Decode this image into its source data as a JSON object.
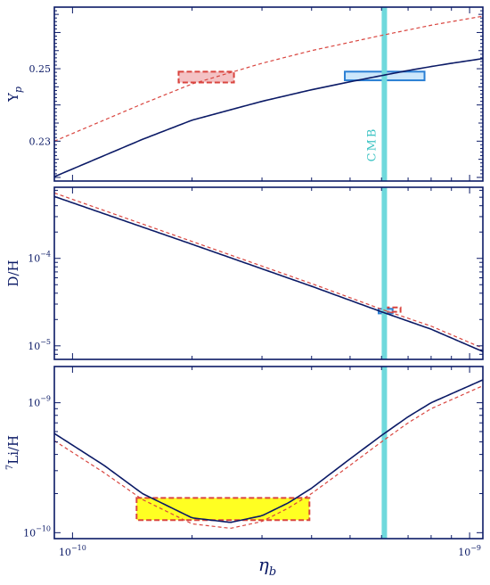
{
  "colors": {
    "axis": "#0b1a66",
    "solid_curve": "#0b1a66",
    "dashed_curve": "#d9453f",
    "cmb_band": "#6fd9dc",
    "cmb_text": "#3fc4c4",
    "box_blue_fill": "#cce7fb",
    "box_blue_stroke": "#2a7fd4",
    "box_red_fill": "#f4c2c4",
    "box_red_stroke": "#d9453f",
    "box_yellow_fill": "#ffff22",
    "box_yellow_stroke": "#d9453f"
  },
  "figure": {
    "xlabel": "η",
    "xlabel_sub": "b",
    "cmb_label": "CMB",
    "cmb_eta": 6.1e-10
  },
  "chart_data": [
    {
      "type": "line",
      "panel": "top",
      "ylabel": "Y",
      "ylabel_sub": "p",
      "x_scale": "log",
      "y_scale": "linear",
      "xlim": [
        9e-11,
        1.08e-09
      ],
      "ylim": [
        0.219,
        0.267
      ],
      "y_ticks": [
        {
          "value": 0.23,
          "label": "0.23"
        },
        {
          "value": 0.25,
          "label": "0.25"
        }
      ],
      "series": [
        {
          "style": "solid",
          "x": [
            9e-11,
            1.5e-10,
            2e-10,
            3e-10,
            4e-10,
            5e-10,
            6e-10,
            7e-10,
            8e-10,
            9e-10,
            1.08e-09
          ],
          "y": [
            0.2202,
            0.2305,
            0.2358,
            0.241,
            0.2442,
            0.2464,
            0.2481,
            0.2495,
            0.2506,
            0.2515,
            0.2528
          ]
        },
        {
          "style": "dashed",
          "x": [
            9e-11,
            1.5e-10,
            2e-10,
            3e-10,
            4e-10,
            5e-10,
            6e-10,
            7e-10,
            8e-10,
            9e-10,
            1.08e-09
          ],
          "y": [
            0.23,
            0.2403,
            0.2458,
            0.2515,
            0.255,
            0.2573,
            0.2592,
            0.2607,
            0.262,
            0.263,
            0.2645
          ]
        }
      ],
      "boxes": [
        {
          "color": "red",
          "x0": 1.85e-10,
          "x1": 2.55e-10,
          "y0": 0.2462,
          "y1": 0.2492
        },
        {
          "color": "blue",
          "x0": 4.85e-10,
          "x1": 7.7e-10,
          "y0": 0.2468,
          "y1": 0.2492
        }
      ]
    },
    {
      "type": "line",
      "panel": "middle",
      "ylabel": "D/H",
      "x_scale": "log",
      "y_scale": "log",
      "xlim": [
        9e-11,
        1.08e-09
      ],
      "ylim": [
        7e-06,
        0.00065
      ],
      "y_ticks": [
        {
          "value": 1e-05,
          "base": "10",
          "exp": "−5"
        },
        {
          "value": 0.0001,
          "base": "10",
          "exp": "−4"
        }
      ],
      "series": [
        {
          "style": "solid",
          "x": [
            9e-11,
            2e-10,
            4e-10,
            6e-10,
            8e-10,
            1.08e-09
          ],
          "y": [
            0.00051,
            0.000145,
            4.8e-05,
            2.45e-05,
            1.55e-05,
            8.6e-06
          ]
        },
        {
          "style": "dashed",
          "x": [
            9e-11,
            2e-10,
            4e-10,
            6e-10,
            8e-10,
            1.08e-09
          ],
          "y": [
            0.00056,
            0.000156,
            5.15e-05,
            2.62e-05,
            1.68e-05,
            9.4e-06
          ]
        }
      ],
      "boxes": [
        {
          "color": "blue",
          "x0": 5.9e-10,
          "x1": 6.4e-10,
          "y0": 2.35e-05,
          "y1": 2.65e-05
        },
        {
          "color": "red",
          "x0": 6.1e-10,
          "x1": 6.7e-10,
          "y0": 2.45e-05,
          "y1": 2.75e-05
        }
      ]
    },
    {
      "type": "line",
      "panel": "bottom",
      "ylabel": "Li/H",
      "ylabel_sup": "7",
      "x_scale": "log",
      "y_scale": "log",
      "xlim": [
        9e-11,
        1.08e-09
      ],
      "ylim": [
        9e-11,
        1.9e-09
      ],
      "y_ticks": [
        {
          "value": 1e-10,
          "base": "10",
          "exp": "−10"
        },
        {
          "value": 1e-09,
          "base": "10",
          "exp": "−9"
        }
      ],
      "series": [
        {
          "style": "solid",
          "x": [
            9e-11,
            1.2e-10,
            1.5e-10,
            2e-10,
            2.5e-10,
            3e-10,
            3.5e-10,
            4e-10,
            5e-10,
            6e-10,
            7e-10,
            8e-10,
            1.08e-09
          ],
          "y": [
            5.8e-10,
            3.3e-10,
            2e-10,
            1.3e-10,
            1.2e-10,
            1.35e-10,
            1.7e-10,
            2.2e-10,
            3.7e-10,
            5.6e-10,
            7.8e-10,
            1e-09,
            1.5e-09
          ]
        },
        {
          "style": "dashed",
          "x": [
            9e-11,
            1.2e-10,
            1.5e-10,
            2e-10,
            2.5e-10,
            3e-10,
            3.5e-10,
            4e-10,
            5e-10,
            6e-10,
            7e-10,
            8e-10,
            1.08e-09
          ],
          "y": [
            5.1e-10,
            2.9e-10,
            1.8e-10,
            1.17e-10,
            1.08e-10,
            1.22e-10,
            1.55e-10,
            2e-10,
            3.3e-10,
            5e-10,
            7e-10,
            9e-10,
            1.35e-09
          ]
        }
      ],
      "boxes": [
        {
          "color": "yellow",
          "x0": 1.45e-10,
          "x1": 3.95e-10,
          "y0": 1.25e-10,
          "y1": 1.85e-10
        }
      ]
    }
  ],
  "x_ticks": [
    {
      "value": 1e-10,
      "base": "10",
      "exp": "−10"
    },
    {
      "value": 1e-09,
      "base": "10",
      "exp": "−9"
    }
  ]
}
